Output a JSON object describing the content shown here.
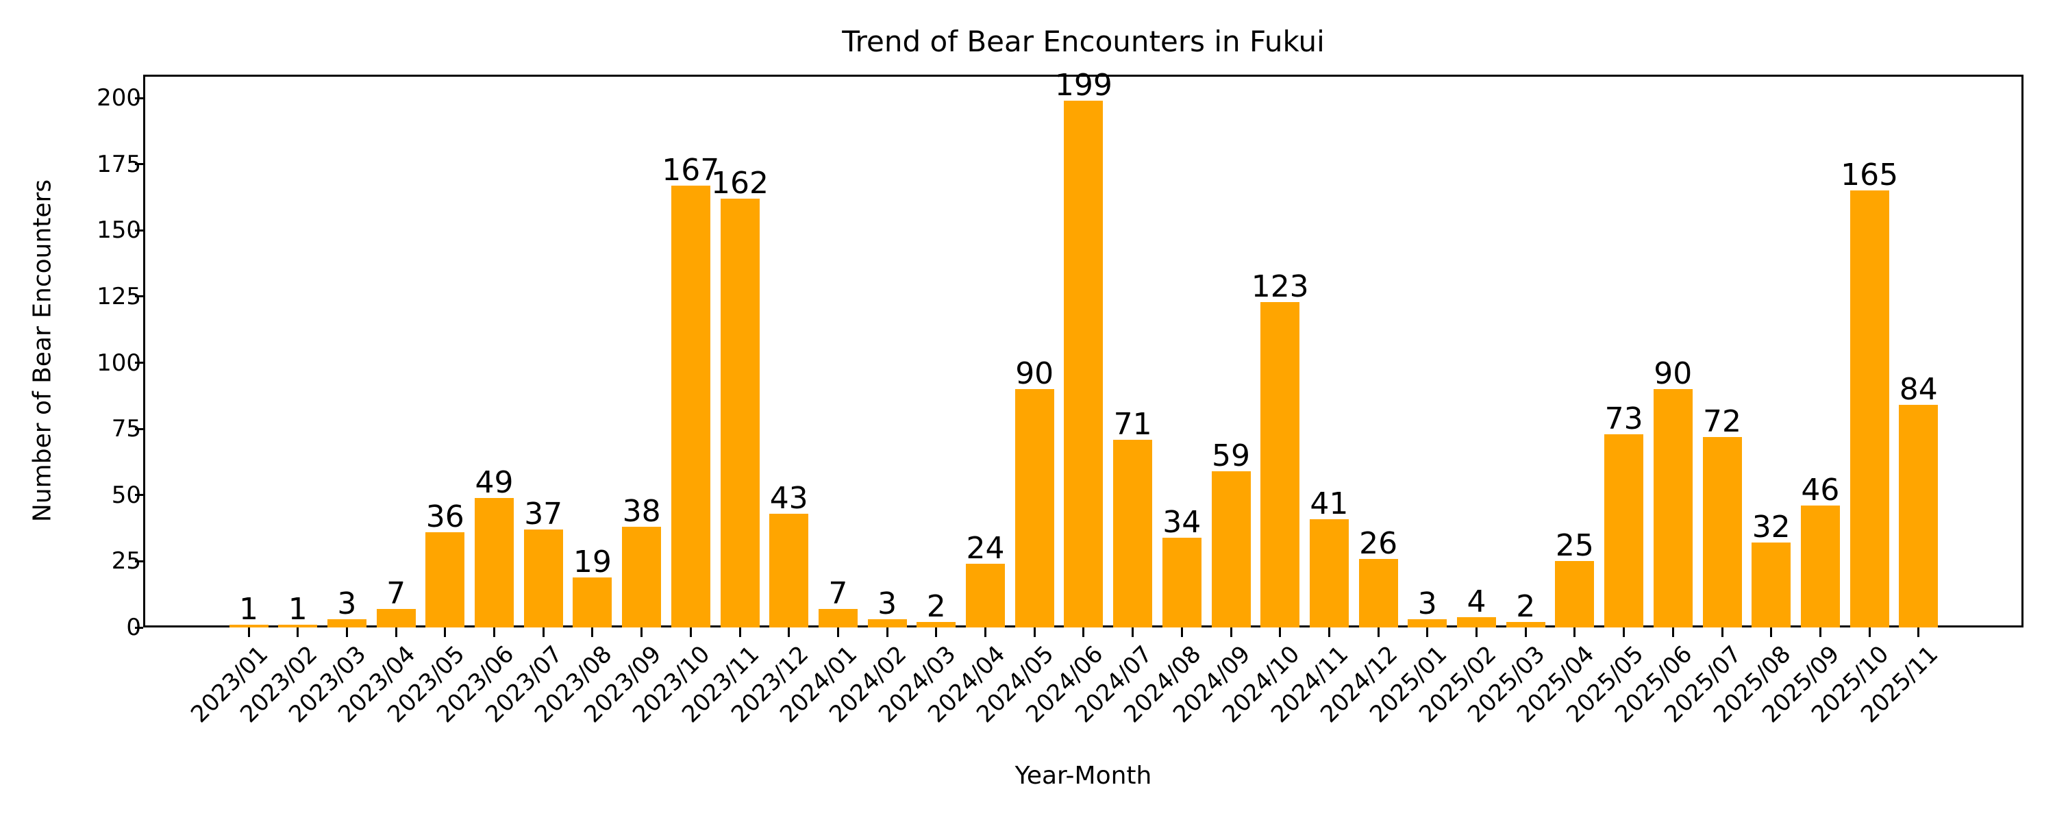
{
  "chart_data": {
    "type": "bar",
    "title": "Trend of Bear Encounters in Fukui",
    "xlabel": "Year-Month",
    "ylabel": "Number of Bear Encounters",
    "ylim": [
      0,
      208
    ],
    "yticks": [
      0,
      25,
      50,
      75,
      100,
      125,
      150,
      175,
      200
    ],
    "grid": false,
    "bar_color": "#FFA500",
    "categories": [
      "2023/01",
      "2023/02",
      "2023/03",
      "2023/04",
      "2023/05",
      "2023/06",
      "2023/07",
      "2023/08",
      "2023/09",
      "2023/10",
      "2023/11",
      "2023/12",
      "2024/01",
      "2024/02",
      "2024/03",
      "2024/04",
      "2024/05",
      "2024/06",
      "2024/07",
      "2024/08",
      "2024/09",
      "2024/10",
      "2024/11",
      "2024/12",
      "2025/01",
      "2025/02",
      "2025/03",
      "2025/04",
      "2025/05",
      "2025/06",
      "2025/07",
      "2025/08",
      "2025/09",
      "2025/10",
      "2025/11"
    ],
    "values": [
      1,
      1,
      3,
      7,
      36,
      49,
      37,
      19,
      38,
      167,
      162,
      43,
      7,
      3,
      2,
      24,
      90,
      199,
      71,
      34,
      59,
      123,
      41,
      26,
      3,
      4,
      2,
      25,
      73,
      90,
      72,
      32,
      46,
      165,
      84
    ]
  }
}
